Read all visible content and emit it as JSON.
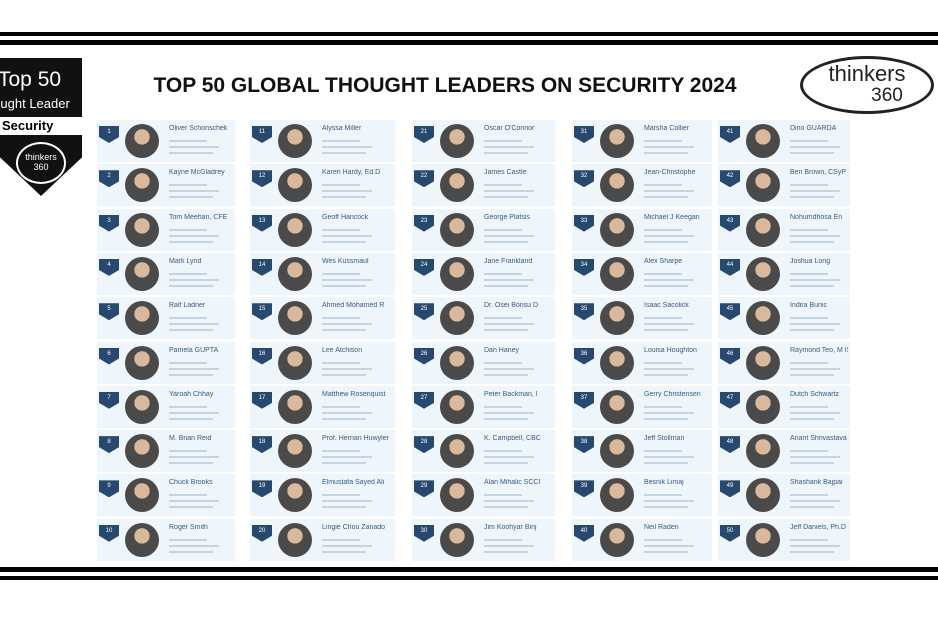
{
  "badge": {
    "top": "Top 50",
    "role": "Thought Leader",
    "topic": "Security",
    "brand": "thinkers",
    "brand_number": "360"
  },
  "title": "TOP 50 GLOBAL THOUGHT LEADERS ON SECURITY 2024",
  "logo": {
    "word": "thinkers",
    "number": "360"
  },
  "leaders": [
    {
      "rank": 1,
      "name": "Oliver Schonschek"
    },
    {
      "rank": 2,
      "name": "Kayne McGladrey"
    },
    {
      "rank": 3,
      "name": "Tom Meehan, CFE"
    },
    {
      "rank": 4,
      "name": "Mark Lynd"
    },
    {
      "rank": 5,
      "name": "Ralf Ladner"
    },
    {
      "rank": 6,
      "name": "Pamela GUPTA"
    },
    {
      "rank": 7,
      "name": "Yaroah Chhay"
    },
    {
      "rank": 8,
      "name": "M. Brian Reid"
    },
    {
      "rank": 9,
      "name": "Chuck Brooks"
    },
    {
      "rank": 10,
      "name": "Roger Smith"
    },
    {
      "rank": 11,
      "name": "Alyssa Miller"
    },
    {
      "rank": 12,
      "name": "Karen Hardy, Ed.D"
    },
    {
      "rank": 13,
      "name": "Geoff Hancock"
    },
    {
      "rank": 14,
      "name": "Wes Kussmaul"
    },
    {
      "rank": 15,
      "name": "Ahmed Mohamed R"
    },
    {
      "rank": 16,
      "name": "Lee Atchison"
    },
    {
      "rank": 17,
      "name": "Matthew Rosenquist"
    },
    {
      "rank": 18,
      "name": "Prof. Hernan Huwyler"
    },
    {
      "rank": 19,
      "name": "Elmustafa Sayed Ali"
    },
    {
      "rank": 20,
      "name": "Lingie Chou Zanado"
    },
    {
      "rank": 21,
      "name": "Oscar O'Connor"
    },
    {
      "rank": 22,
      "name": "James Castle"
    },
    {
      "rank": 23,
      "name": "George Platsis"
    },
    {
      "rank": 24,
      "name": "Jane Frankland"
    },
    {
      "rank": 25,
      "name": "Dr. Osei Bonsu D"
    },
    {
      "rank": 26,
      "name": "Dan Haney"
    },
    {
      "rank": 27,
      "name": "Peter Backman, I"
    },
    {
      "rank": 28,
      "name": "K. Campbell, CBC"
    },
    {
      "rank": 29,
      "name": "Alan Mihalic SCCI"
    },
    {
      "rank": 30,
      "name": "Jim Koohyar Binj"
    },
    {
      "rank": 31,
      "name": "Marsha Collier"
    },
    {
      "rank": 32,
      "name": "Jean-Christophe"
    },
    {
      "rank": 33,
      "name": "Michael J Keegan"
    },
    {
      "rank": 34,
      "name": "Alex Sharpe"
    },
    {
      "rank": 35,
      "name": "Isaac Sacolick"
    },
    {
      "rank": 36,
      "name": "Louisa Houghton"
    },
    {
      "rank": 37,
      "name": "Gerry Christensen"
    },
    {
      "rank": 38,
      "name": "Jeff Stollman"
    },
    {
      "rank": 39,
      "name": "Besnik Limaj"
    },
    {
      "rank": 40,
      "name": "Neil Raden"
    },
    {
      "rank": 41,
      "name": "Dino GUARDA"
    },
    {
      "rank": 42,
      "name": "Ben Brown, CSyP"
    },
    {
      "rank": 43,
      "name": "Nohumdhosa En"
    },
    {
      "rank": 44,
      "name": "Joshua Long"
    },
    {
      "rank": 45,
      "name": "Indira Bunic"
    },
    {
      "rank": 46,
      "name": "Raymond Teo, M ISMS LA"
    },
    {
      "rank": 47,
      "name": "Dutch Schwartz"
    },
    {
      "rank": 48,
      "name": "Anant Shrivastava"
    },
    {
      "rank": 49,
      "name": "Shashank Bajpai"
    },
    {
      "rank": 50,
      "name": "Jeff Daniels, Ph.D"
    }
  ]
}
